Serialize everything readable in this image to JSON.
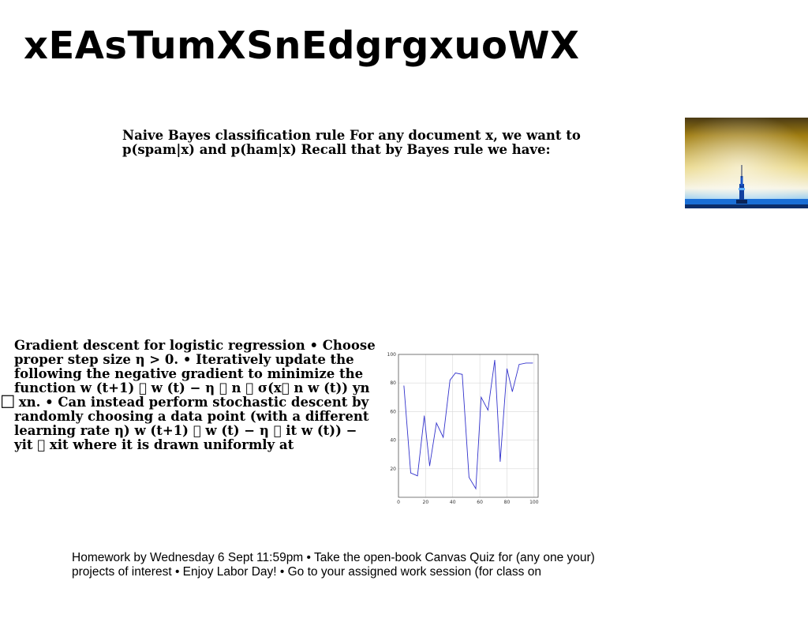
{
  "slide": {
    "title": "xEAsTumXSnEdgrgxuoWX",
    "paragraph1": "Naive Bayes classification rule For any document x, we want to p(spam|x) and p(ham|x) Recall that by Bayes rule we have:",
    "paragraph2": "Gradient descent for logistic regression • Choose proper step size η > 0. • Iteratively update the following the negative gradient to minimize the function w (t+1) ⃞ w (t) − η ⃞ n ⃞ σ(x⃞ n w (t)) yn ⃞ xn. • Can instead perform stochastic descent by randomly choosing a data point (with a different learning rate η) w (t+1) ⃞ w (t) − η ⃞ it w (t)) − yit ⃞ xit where it is drawn uniformly at",
    "footer": "Homework by Wednesday 6 Sept 11:59pm • Take the open-book Canvas Quiz for (any one your) projects of interest • Enjoy Labor Day! • Go to your assigned work session (for class on",
    "photo_description_icon": "city-tower-photo"
  },
  "chart_data": {
    "type": "line",
    "x": [
      4,
      9,
      14,
      19,
      23,
      28,
      33,
      38,
      42,
      47,
      52,
      57,
      61,
      66,
      71,
      75,
      80,
      84,
      89,
      94,
      99
    ],
    "y": [
      78,
      17,
      15,
      57,
      22,
      52,
      42,
      82,
      87,
      86,
      14,
      6,
      70,
      61,
      96,
      25,
      90,
      74,
      93,
      94,
      94
    ],
    "xticks": [
      "0",
      "20",
      "40",
      "60",
      "80",
      "100"
    ],
    "yticks": [
      "20",
      "40",
      "60",
      "80",
      "100"
    ],
    "xlim": [
      0,
      103
    ],
    "ylim": [
      0,
      100
    ],
    "grid": true,
    "line_color": "#3333cc",
    "title": "",
    "xlabel": "",
    "ylabel": ""
  }
}
